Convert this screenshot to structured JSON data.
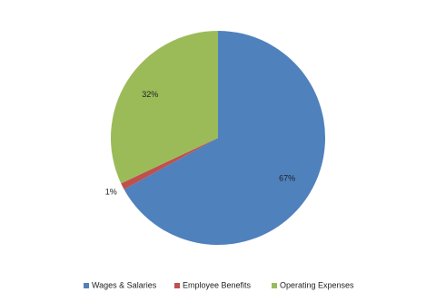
{
  "chart_data": {
    "type": "pie",
    "categories": [
      "Wages & Salaries",
      "Employee Benefits",
      "Operating Expenses"
    ],
    "values": [
      67,
      1,
      32
    ],
    "value_labels": [
      "67%",
      "1%",
      "32%"
    ],
    "colors": [
      "#4f81bd",
      "#c0504d",
      "#9bbb59"
    ],
    "legend": "bottom"
  }
}
